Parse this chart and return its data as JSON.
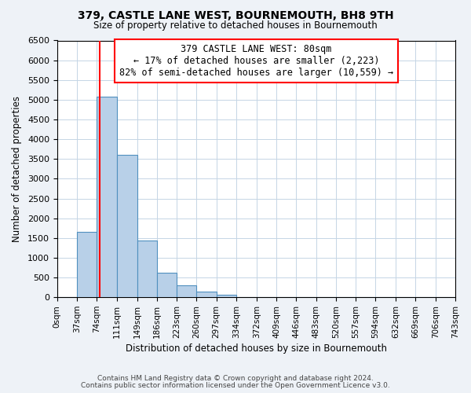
{
  "title": "379, CASTLE LANE WEST, BOURNEMOUTH, BH8 9TH",
  "subtitle": "Size of property relative to detached houses in Bournemouth",
  "xlabel": "Distribution of detached houses by size in Bournemouth",
  "ylabel": "Number of detached properties",
  "footer_line1": "Contains HM Land Registry data © Crown copyright and database right 2024.",
  "footer_line2": "Contains public sector information licensed under the Open Government Licence v3.0.",
  "bin_edges": [
    0,
    37,
    74,
    111,
    149,
    186,
    223,
    260,
    297,
    334,
    372,
    409,
    446,
    483,
    520,
    557,
    594,
    632,
    669,
    706,
    743
  ],
  "bin_labels": [
    "0sqm",
    "37sqm",
    "74sqm",
    "111sqm",
    "149sqm",
    "186sqm",
    "223sqm",
    "260sqm",
    "297sqm",
    "334sqm",
    "372sqm",
    "409sqm",
    "446sqm",
    "483sqm",
    "520sqm",
    "557sqm",
    "594sqm",
    "632sqm",
    "669sqm",
    "706sqm",
    "743sqm"
  ],
  "counts": [
    0,
    1650,
    5080,
    3600,
    1430,
    620,
    305,
    145,
    60,
    0,
    0,
    0,
    0,
    0,
    0,
    0,
    0,
    0,
    0,
    0
  ],
  "bar_color": "#b8d0e8",
  "bar_edge_color": "#5090bf",
  "vline_x": 80,
  "vline_color": "red",
  "annotation_title": "379 CASTLE LANE WEST: 80sqm",
  "annotation_line1": "← 17% of detached houses are smaller (2,223)",
  "annotation_line2": "82% of semi-detached houses are larger (10,559) →",
  "annotation_box_color": "white",
  "annotation_box_edge": "red",
  "ylim": [
    0,
    6500
  ],
  "background_color": "#eef2f7",
  "plot_background": "white",
  "grid_color": "#c5d5e5"
}
